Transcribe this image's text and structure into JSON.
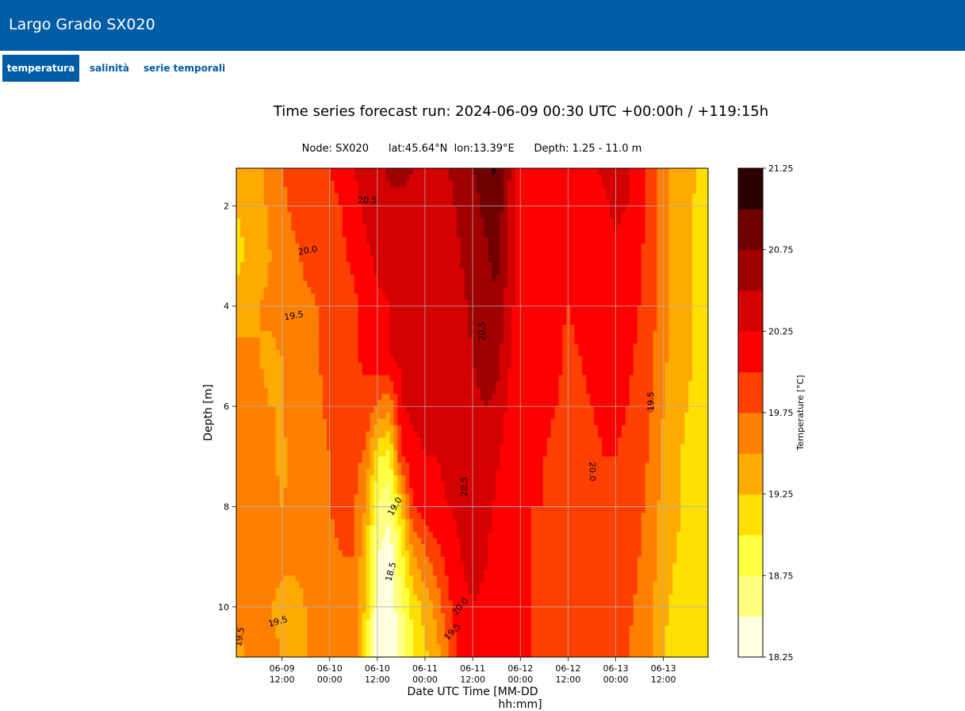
{
  "app": {
    "title": "Largo Grado SX020"
  },
  "tabs": [
    {
      "label": "temperatura",
      "active": true
    },
    {
      "label": "salinità",
      "active": false
    },
    {
      "label": "serie temporali",
      "active": false
    }
  ],
  "chart_data": {
    "type": "heatmap",
    "title": "Time series forecast run: 2024-06-09  00:30 UTC   +00:00h / +119:15h",
    "subtitle": "Node: SX020      lat:45.64°N  lon:13.39°E      Depth: 1.25 - 11.0 m",
    "xlabel": "Date UTC Time [MM-DD\n                   hh:mm]",
    "ylabel": "Depth [m]",
    "colorbar_label": "Temperature [°C]",
    "grid": true,
    "xlim": [
      0.5,
      119.25
    ],
    "ylim": [
      11.0,
      1.25
    ],
    "x_ticks": [
      {
        "value": 12,
        "label": "06-09\n12:00"
      },
      {
        "value": 24,
        "label": "06-10\n00:00"
      },
      {
        "value": 36,
        "label": "06-10\n12:00"
      },
      {
        "value": 48,
        "label": "06-11\n00:00"
      },
      {
        "value": 60,
        "label": "06-11\n12:00"
      },
      {
        "value": 72,
        "label": "06-12\n00:00"
      },
      {
        "value": 84,
        "label": "06-12\n12:00"
      },
      {
        "value": 96,
        "label": "06-13\n00:00"
      },
      {
        "value": 108,
        "label": "06-13\n12:00"
      }
    ],
    "y_ticks": [
      {
        "value": 2,
        "label": "2"
      },
      {
        "value": 4,
        "label": "4"
      },
      {
        "value": 6,
        "label": "6"
      },
      {
        "value": 8,
        "label": "8"
      },
      {
        "value": 10,
        "label": "10"
      }
    ],
    "colorbar": {
      "levels": [
        18.25,
        18.5,
        18.75,
        19.0,
        19.25,
        19.5,
        19.75,
        20.0,
        20.25,
        20.5,
        20.75,
        21.0,
        21.25
      ],
      "colors": [
        "#ffffe0",
        "#ffff80",
        "#ffff40",
        "#ffe000",
        "#ffaa00",
        "#ff8000",
        "#ff4000",
        "#ff0000",
        "#d40000",
        "#a00000",
        "#700000",
        "#2a0000"
      ],
      "tick_labels": [
        "21.25",
        "20.75",
        "20.25",
        "19.75",
        "19.25",
        "18.75",
        "18.25"
      ],
      "tick_values": [
        21.25,
        20.75,
        20.25,
        19.75,
        19.25,
        18.75,
        18.25
      ]
    },
    "bands": [
      {
        "x": [
          0.5,
          3,
          6,
          9,
          12,
          15,
          18,
          21,
          24,
          27,
          30,
          33,
          36,
          39,
          42,
          45,
          48,
          51,
          54,
          57,
          60,
          63,
          66,
          69,
          72,
          75,
          78,
          81,
          84,
          87,
          90,
          93,
          96,
          99,
          102,
          105,
          108,
          111,
          114,
          117,
          119.25
        ],
        "values": [
          19.3,
          19.35,
          19.45,
          19.6,
          19.75,
          19.85,
          19.9,
          19.95,
          20.0,
          20.1,
          20.25,
          20.35,
          20.45,
          20.55,
          20.55,
          20.5,
          20.5,
          20.5,
          20.5,
          20.6,
          20.75,
          20.9,
          21.05,
          20.55,
          20.15,
          20.1,
          20.1,
          20.1,
          20.15,
          20.15,
          20.2,
          20.3,
          20.4,
          20.3,
          20.15,
          19.9,
          19.6,
          19.4,
          19.3,
          19.25,
          19.2
        ]
      },
      {
        "x": [
          0.5,
          3,
          6,
          9,
          12,
          15,
          18,
          21,
          24,
          27,
          30,
          33,
          36,
          39,
          42,
          45,
          48,
          51,
          54,
          57,
          60,
          63,
          66,
          69,
          72,
          75,
          78,
          81,
          84,
          87,
          90,
          93,
          96,
          99,
          102,
          105,
          108,
          111,
          114,
          117,
          119.25
        ],
        "values": [
          19.25,
          19.3,
          19.4,
          19.55,
          19.7,
          19.8,
          19.85,
          19.9,
          19.95,
          20.0,
          20.15,
          20.3,
          20.4,
          20.45,
          20.45,
          20.45,
          20.45,
          20.45,
          20.45,
          20.55,
          20.65,
          20.8,
          20.95,
          20.5,
          20.1,
          20.05,
          20.05,
          20.05,
          20.1,
          20.1,
          20.15,
          20.2,
          20.3,
          20.25,
          20.1,
          19.9,
          19.6,
          19.4,
          19.3,
          19.2,
          19.15
        ]
      },
      {
        "x": [
          0.5,
          3,
          6,
          9,
          12,
          15,
          18,
          21,
          24,
          27,
          30,
          33,
          36,
          39,
          42,
          45,
          48,
          51,
          54,
          57,
          60,
          63,
          66,
          69,
          72,
          75,
          78,
          81,
          84,
          87,
          90,
          93,
          96,
          99,
          102,
          105,
          108,
          111,
          114,
          117,
          119.25
        ],
        "values": [
          19.2,
          19.25,
          19.35,
          19.5,
          19.6,
          19.7,
          19.8,
          19.85,
          19.9,
          19.95,
          20.05,
          20.2,
          20.3,
          20.35,
          20.4,
          20.4,
          20.4,
          20.4,
          20.4,
          20.5,
          20.6,
          20.7,
          20.85,
          20.45,
          20.1,
          20.05,
          20.05,
          20.05,
          20.05,
          20.05,
          20.1,
          20.15,
          20.2,
          20.15,
          20.05,
          19.85,
          19.6,
          19.4,
          19.3,
          19.2,
          19.1
        ]
      },
      {
        "x": [
          0.5,
          3,
          6,
          9,
          12,
          15,
          18,
          21,
          24,
          27,
          30,
          33,
          36,
          39,
          42,
          45,
          48,
          51,
          54,
          57,
          60,
          63,
          66,
          69,
          72,
          75,
          78,
          81,
          84,
          87,
          90,
          93,
          96,
          99,
          102,
          105,
          108,
          111,
          114,
          117,
          119.25
        ],
        "values": [
          19.3,
          19.4,
          19.5,
          19.55,
          19.6,
          19.65,
          19.7,
          19.75,
          19.8,
          19.85,
          19.95,
          20.05,
          20.2,
          20.25,
          20.3,
          20.3,
          20.35,
          20.35,
          20.35,
          20.45,
          20.55,
          20.65,
          20.7,
          20.4,
          20.05,
          20.05,
          20.05,
          20.05,
          20.0,
          20.05,
          20.05,
          20.1,
          20.15,
          20.1,
          20.0,
          19.85,
          19.6,
          19.4,
          19.3,
          19.2,
          19.1
        ]
      },
      {
        "x": [
          0.5,
          3,
          6,
          9,
          12,
          15,
          18,
          21,
          24,
          27,
          30,
          33,
          36,
          39,
          42,
          45,
          48,
          51,
          54,
          57,
          60,
          63,
          66,
          69,
          72,
          75,
          78,
          81,
          84,
          87,
          90,
          93,
          96,
          99,
          102,
          105,
          108,
          111,
          114,
          117,
          119.25
        ],
        "values": [
          19.6,
          19.55,
          19.5,
          19.45,
          19.5,
          19.6,
          19.7,
          19.75,
          19.8,
          19.85,
          19.95,
          20.05,
          20.15,
          20.25,
          20.3,
          20.3,
          20.3,
          20.3,
          20.35,
          20.4,
          20.5,
          20.6,
          20.6,
          20.3,
          20.05,
          20.05,
          20.05,
          20.05,
          19.95,
          20.0,
          20.05,
          20.1,
          20.1,
          20.05,
          19.95,
          19.8,
          19.55,
          19.4,
          19.3,
          19.2,
          19.1
        ]
      },
      {
        "x": [
          0.5,
          3,
          6,
          9,
          12,
          15,
          18,
          21,
          24,
          27,
          30,
          33,
          36,
          39,
          42,
          45,
          48,
          51,
          54,
          57,
          60,
          63,
          66,
          69,
          72,
          75,
          78,
          81,
          84,
          87,
          90,
          93,
          96,
          99,
          102,
          105,
          108,
          111,
          114,
          117,
          119.25
        ],
        "values": [
          19.65,
          19.6,
          19.55,
          19.5,
          19.5,
          19.6,
          19.65,
          19.7,
          19.8,
          19.85,
          19.9,
          19.95,
          19.75,
          19.55,
          20.25,
          20.3,
          20.3,
          20.3,
          20.3,
          20.35,
          20.45,
          20.5,
          20.45,
          20.2,
          20.05,
          20.05,
          20.05,
          20.0,
          19.95,
          19.95,
          20.0,
          20.05,
          20.05,
          20.0,
          19.9,
          19.75,
          19.5,
          19.35,
          19.25,
          19.15,
          19.05
        ]
      },
      {
        "x": [
          0.5,
          3,
          6,
          9,
          12,
          15,
          18,
          21,
          24,
          27,
          30,
          33,
          36,
          39,
          42,
          45,
          48,
          51,
          54,
          57,
          60,
          63,
          66,
          69,
          72,
          75,
          78,
          81,
          84,
          87,
          90,
          93,
          96,
          99,
          102,
          105,
          108,
          111,
          114,
          117,
          119.25
        ],
        "values": [
          19.7,
          19.65,
          19.6,
          19.55,
          19.45,
          19.55,
          19.65,
          19.7,
          19.75,
          19.8,
          19.85,
          19.7,
          19.05,
          18.9,
          19.95,
          20.2,
          20.25,
          20.25,
          20.3,
          20.35,
          20.4,
          20.45,
          20.3,
          20.1,
          20.05,
          20.05,
          20.0,
          19.95,
          19.95,
          19.95,
          19.95,
          20.0,
          20.0,
          19.95,
          19.85,
          19.7,
          19.45,
          19.3,
          19.2,
          19.1,
          19.05
        ]
      },
      {
        "x": [
          0.5,
          3,
          6,
          9,
          12,
          15,
          18,
          21,
          24,
          27,
          30,
          33,
          36,
          39,
          42,
          45,
          48,
          51,
          54,
          57,
          60,
          63,
          66,
          69,
          72,
          75,
          78,
          81,
          84,
          87,
          90,
          93,
          96,
          99,
          102,
          105,
          108,
          111,
          114,
          117,
          119.25
        ],
        "values": [
          19.75,
          19.7,
          19.65,
          19.55,
          19.5,
          19.55,
          19.6,
          19.7,
          19.75,
          19.8,
          19.8,
          19.5,
          18.75,
          18.55,
          19.2,
          20.0,
          20.15,
          20.2,
          20.25,
          20.3,
          20.35,
          20.35,
          20.2,
          20.05,
          20.05,
          20.0,
          20.0,
          19.9,
          19.95,
          19.95,
          19.95,
          19.95,
          19.95,
          19.9,
          19.8,
          19.65,
          19.4,
          19.3,
          19.2,
          19.1,
          19.0
        ]
      },
      {
        "x": [
          0.5,
          3,
          6,
          9,
          12,
          15,
          18,
          21,
          24,
          27,
          30,
          33,
          36,
          39,
          42,
          45,
          48,
          51,
          54,
          57,
          60,
          63,
          66,
          69,
          72,
          75,
          78,
          81,
          84,
          87,
          90,
          93,
          96,
          99,
          102,
          105,
          108,
          111,
          114,
          117,
          119.25
        ],
        "values": [
          19.75,
          19.7,
          19.65,
          19.6,
          19.55,
          19.55,
          19.6,
          19.65,
          19.7,
          19.75,
          19.75,
          19.3,
          18.5,
          18.35,
          18.9,
          19.45,
          19.7,
          19.9,
          20.1,
          20.25,
          20.3,
          20.3,
          20.1,
          20.05,
          20.05,
          20.0,
          19.95,
          19.95,
          19.95,
          19.95,
          19.9,
          19.9,
          19.9,
          19.85,
          19.75,
          19.6,
          19.35,
          19.25,
          19.15,
          19.05,
          19.0
        ]
      },
      {
        "x": [
          0.5,
          3,
          6,
          9,
          12,
          15,
          18,
          21,
          24,
          27,
          30,
          33,
          36,
          39,
          42,
          45,
          48,
          51,
          54,
          57,
          60,
          63,
          66,
          69,
          72,
          75,
          78,
          81,
          84,
          87,
          90,
          93,
          96,
          99,
          102,
          105,
          108,
          111,
          114,
          117,
          119.25
        ],
        "values": [
          19.6,
          19.55,
          19.5,
          19.5,
          19.45,
          19.4,
          19.5,
          19.6,
          19.65,
          19.7,
          19.7,
          19.2,
          18.4,
          18.3,
          18.7,
          19.1,
          19.35,
          19.6,
          19.95,
          20.2,
          20.25,
          20.2,
          20.05,
          20.05,
          20.05,
          20.0,
          19.95,
          19.95,
          19.95,
          19.9,
          19.9,
          19.9,
          19.85,
          19.8,
          19.7,
          19.55,
          19.3,
          19.2,
          19.1,
          19.05,
          19.0
        ]
      },
      {
        "x": [
          0.5,
          3,
          6,
          9,
          12,
          15,
          18,
          21,
          24,
          27,
          30,
          33,
          36,
          39,
          42,
          45,
          48,
          51,
          54,
          57,
          60,
          63,
          66,
          69,
          72,
          75,
          78,
          81,
          84,
          87,
          90,
          93,
          96,
          99,
          102,
          105,
          108,
          111,
          114,
          117,
          119.25
        ],
        "values": [
          19.45,
          19.5,
          19.55,
          19.55,
          19.5,
          19.45,
          19.5,
          19.55,
          19.6,
          19.65,
          19.65,
          19.1,
          18.3,
          18.25,
          18.55,
          18.95,
          19.2,
          19.4,
          19.75,
          20.15,
          20.2,
          20.15,
          20.05,
          20.05,
          20.05,
          20.0,
          19.95,
          19.95,
          19.9,
          19.9,
          19.9,
          19.85,
          19.8,
          19.75,
          19.65,
          19.5,
          19.25,
          19.15,
          19.1,
          19.05,
          19.0
        ]
      }
    ],
    "band_depths": [
      1.25,
      2.0,
      3.0,
      4.0,
      5.0,
      6.0,
      7.0,
      8.0,
      9.0,
      10.0,
      11.0
    ],
    "contour_labels": [
      {
        "text": "20.5",
        "x": 33.5,
        "y": 1.9,
        "rotation": 0
      },
      {
        "text": "20.0",
        "x": 18.5,
        "y": 2.9,
        "rotation": -10
      },
      {
        "text": "19.5",
        "x": 15,
        "y": 4.2,
        "rotation": -10
      },
      {
        "text": "19.5",
        "x": 105,
        "y": 5.9,
        "rotation": -90
      },
      {
        "text": "20.0",
        "x": 90,
        "y": 7.3,
        "rotation": 90
      },
      {
        "text": "20.5",
        "x": 58,
        "y": 7.6,
        "rotation": -90
      },
      {
        "text": "19.0",
        "x": 40.5,
        "y": 8.0,
        "rotation": -60
      },
      {
        "text": "18.5",
        "x": 39.5,
        "y": 9.3,
        "rotation": -75
      },
      {
        "text": "20.0",
        "x": 57,
        "y": 10.0,
        "rotation": -50
      },
      {
        "text": "19.5",
        "x": 55,
        "y": 10.5,
        "rotation": -45
      },
      {
        "text": "19.5",
        "x": 11,
        "y": 10.3,
        "rotation": -15
      },
      {
        "text": "19.5",
        "x": 1.5,
        "y": 10.6,
        "rotation": -80
      },
      {
        "text": "20.5",
        "x": 62.5,
        "y": 4.5,
        "rotation": -90
      }
    ]
  }
}
